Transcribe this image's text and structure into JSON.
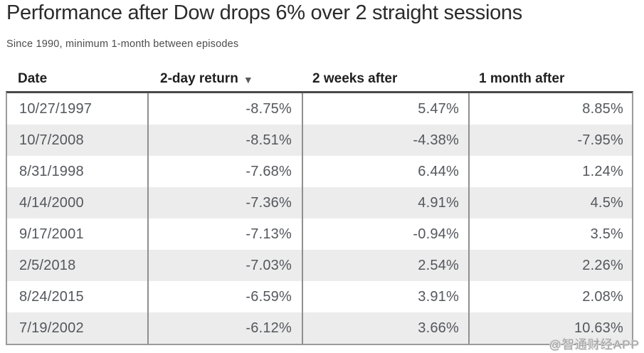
{
  "page": {
    "title": "Performance after Dow drops 6% over 2 straight sessions",
    "subtitle": "Since 1990, minimum 1-month between episodes",
    "watermark": "@智通财经APP"
  },
  "table": {
    "columns": [
      "Date",
      "2-day return",
      "2 weeks after",
      "1 month after"
    ],
    "sort": {
      "column": "2-day return",
      "direction": "descending",
      "icon": "▼"
    },
    "rows": [
      {
        "date": "10/27/1997",
        "two_day": "-8.75%",
        "two_weeks": "5.47%",
        "one_month": "8.85%"
      },
      {
        "date": "10/7/2008",
        "two_day": "-8.51%",
        "two_weeks": "-4.38%",
        "one_month": "-7.95%"
      },
      {
        "date": "8/31/1998",
        "two_day": "-7.68%",
        "two_weeks": "6.44%",
        "one_month": "1.24%"
      },
      {
        "date": "4/14/2000",
        "two_day": "-7.36%",
        "two_weeks": "4.91%",
        "one_month": "4.5%"
      },
      {
        "date": "9/17/2001",
        "two_day": "-7.13%",
        "two_weeks": "-0.94%",
        "one_month": "3.5%"
      },
      {
        "date": "2/5/2018",
        "two_day": "-7.03%",
        "two_weeks": "2.54%",
        "one_month": "2.26%"
      },
      {
        "date": "8/24/2015",
        "two_day": "-6.59%",
        "two_weeks": "3.91%",
        "one_month": "2.08%"
      },
      {
        "date": "7/19/2002",
        "two_day": "-6.12%",
        "two_weeks": "3.66%",
        "one_month": "10.63%"
      }
    ]
  },
  "chart_data": {
    "type": "table",
    "title": "Performance after Dow drops 6% over 2 straight sessions",
    "subtitle": "Since 1990, minimum 1-month between episodes",
    "columns": [
      "Date",
      "2-day return",
      "2 weeks after",
      "1 month after"
    ],
    "units": "percent",
    "sort": {
      "column": "2-day return",
      "direction": "descending"
    },
    "rows": [
      [
        "10/27/1997",
        -8.75,
        5.47,
        8.85
      ],
      [
        "10/7/2008",
        -8.51,
        -4.38,
        -7.95
      ],
      [
        "8/31/1998",
        -7.68,
        6.44,
        1.24
      ],
      [
        "4/14/2000",
        -7.36,
        4.91,
        4.5
      ],
      [
        "9/17/2001",
        -7.13,
        -0.94,
        3.5
      ],
      [
        "2/5/2018",
        -7.03,
        2.54,
        2.26
      ],
      [
        "8/24/2015",
        -6.59,
        3.91,
        2.08
      ],
      [
        "7/19/2002",
        -6.12,
        3.66,
        10.63
      ]
    ]
  },
  "colors": {
    "alt_row_background": "#ececec",
    "table_top_border": "#4a4a4a",
    "table_border": "#9b9b9b",
    "cell_text": "#54575d",
    "header_text": "#1f1f1f"
  }
}
